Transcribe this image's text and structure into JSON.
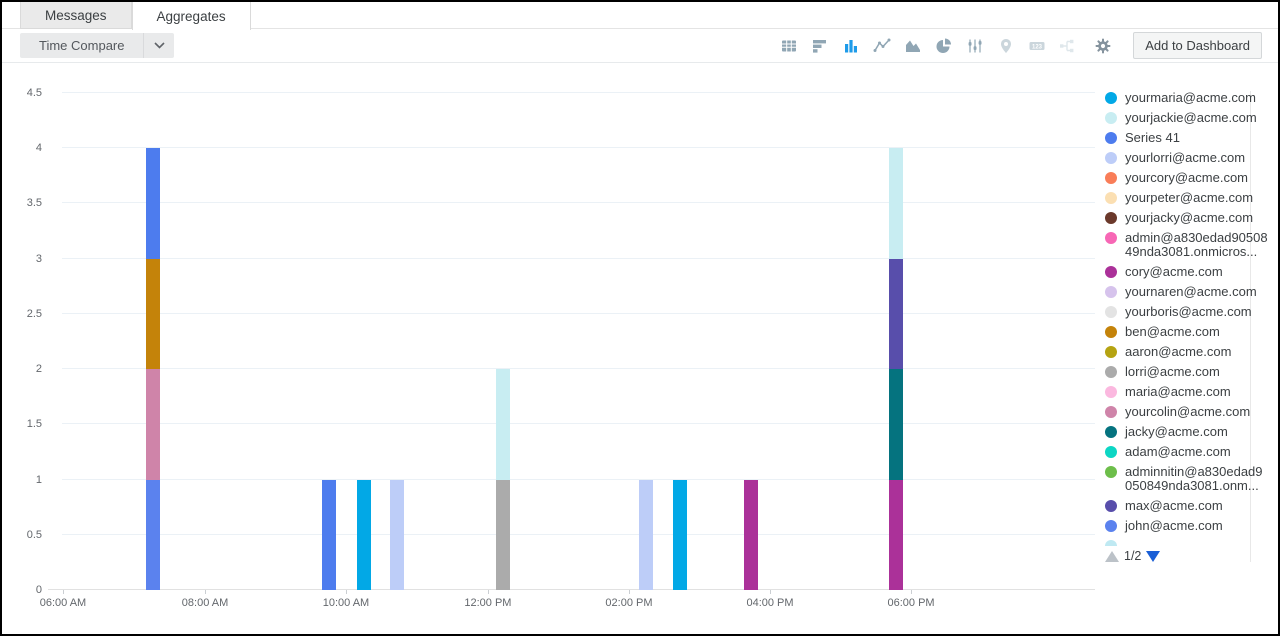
{
  "tabs": {
    "items": [
      {
        "label": "Messages",
        "active": false
      },
      {
        "label": "Aggregates",
        "active": true
      }
    ]
  },
  "toolbar": {
    "time_compare_label": "Time Compare",
    "add_to_dashboard_label": "Add to Dashboard",
    "accent_color": "#1E9BE9",
    "chart_type_icons": [
      {
        "name": "table-icon",
        "state": "normal"
      },
      {
        "name": "horizontal-bar-chart-icon",
        "state": "normal"
      },
      {
        "name": "vertical-bar-chart-icon",
        "state": "active"
      },
      {
        "name": "line-chart-icon",
        "state": "normal"
      },
      {
        "name": "area-chart-icon",
        "state": "normal"
      },
      {
        "name": "pie-chart-icon",
        "state": "normal"
      },
      {
        "name": "sliders-icon",
        "state": "normal"
      },
      {
        "name": "map-pin-icon",
        "state": "disabled"
      },
      {
        "name": "number-123-icon",
        "state": "disabled"
      },
      {
        "name": "flow-icon",
        "state": "disabled"
      },
      {
        "name": "settings-gear-icon",
        "state": "normal"
      }
    ]
  },
  "chart_data": {
    "type": "bar",
    "stacked": true,
    "title": "",
    "xlabel": "",
    "ylabel": "",
    "ylim": [
      0,
      4.5
    ],
    "ytick_labels": [
      "0",
      "0.5",
      "1",
      "1.5",
      "2",
      "2.5",
      "3",
      "3.5",
      "4",
      "4.5"
    ],
    "grid": "horizontal",
    "legend_position": "right",
    "xticks": [
      {
        "label": "06:00 AM",
        "pos": 1.43
      },
      {
        "label": "08:00 AM",
        "pos": 15.0
      },
      {
        "label": "10:00 AM",
        "pos": 28.46
      },
      {
        "label": "12:00 PM",
        "pos": 42.02
      },
      {
        "label": "02:00 PM",
        "pos": 55.49
      },
      {
        "label": "04:00 PM",
        "pos": 68.96
      },
      {
        "label": "06:00 PM",
        "pos": 82.43
      }
    ],
    "bars": [
      {
        "time": "07:15 AM",
        "pos": 9.36,
        "segments": [
          {
            "series": "john@acme.com",
            "value": 1
          },
          {
            "series": "yourcolin@acme.com",
            "value": 1
          },
          {
            "series": "ben@acme.com",
            "value": 1
          },
          {
            "series": "Series 41",
            "value": 1
          }
        ]
      },
      {
        "time": "09:45 AM",
        "pos": 26.17,
        "segments": [
          {
            "series": "Series 41",
            "value": 1
          }
        ]
      },
      {
        "time": "10:15 AM",
        "pos": 29.51,
        "segments": [
          {
            "series": "yourmaria@acme.com",
            "value": 1
          }
        ]
      },
      {
        "time": "10:45 AM",
        "pos": 32.66,
        "segments": [
          {
            "series": "yourlorri@acme.com",
            "value": 1
          }
        ]
      },
      {
        "time": "12:15 PM",
        "pos": 42.79,
        "segments": [
          {
            "series": "lorri@acme.com",
            "value": 1
          },
          {
            "series": "yourjackie@acme.com",
            "value": 1
          }
        ]
      },
      {
        "time": "02:15 PM",
        "pos": 56.45,
        "segments": [
          {
            "series": "yourlorri@acme.com",
            "value": 1
          }
        ]
      },
      {
        "time": "02:45 PM",
        "pos": 59.69,
        "segments": [
          {
            "series": "yourmaria@acme.com",
            "value": 1
          }
        ]
      },
      {
        "time": "03:45 PM",
        "pos": 66.48,
        "segments": [
          {
            "series": "cory@acme.com",
            "value": 1
          }
        ]
      },
      {
        "time": "05:45 PM",
        "pos": 80.32,
        "segments": [
          {
            "series": "cory@acme.com",
            "value": 1
          },
          {
            "series": "jacky@acme.com",
            "value": 1
          },
          {
            "series": "max@acme.com",
            "value": 1
          },
          {
            "series": "yourjackie@acme.com",
            "value": 1
          }
        ]
      }
    ],
    "legend": {
      "page": "1/2",
      "clipped_entry_color": "#BFE9F2",
      "entries": [
        {
          "label": "yourmaria@acme.com",
          "color": "#02A8E6"
        },
        {
          "label": "yourjackie@acme.com",
          "color": "#C8EDF2"
        },
        {
          "label": "Series 41",
          "color": "#4D7CEE"
        },
        {
          "label": "yourlorri@acme.com",
          "color": "#BDCDF8"
        },
        {
          "label": "yourcory@acme.com",
          "color": "#F97D58"
        },
        {
          "label": "yourpeter@acme.com",
          "color": "#FBDFB2"
        },
        {
          "label": "yourjacky@acme.com",
          "color": "#6B392B"
        },
        {
          "label": "admin@a830edad9050849nda3081.onmicros...",
          "color": "#F767B5"
        },
        {
          "label": "cory@acme.com",
          "color": "#AB3199"
        },
        {
          "label": "yournaren@acme.com",
          "color": "#D6C3EC"
        },
        {
          "label": "yourboris@acme.com",
          "color": "#E3E3E3"
        },
        {
          "label": "ben@acme.com",
          "color": "#C4830A"
        },
        {
          "label": "aaron@acme.com",
          "color": "#B5A312"
        },
        {
          "label": "lorri@acme.com",
          "color": "#ABABAB"
        },
        {
          "label": "maria@acme.com",
          "color": "#FBB8DF"
        },
        {
          "label": "yourcolin@acme.com",
          "color": "#CF84A9"
        },
        {
          "label": "jacky@acme.com",
          "color": "#05737F"
        },
        {
          "label": "adam@acme.com",
          "color": "#0DD6C4"
        },
        {
          "label": "adminnitin@a830edad9050849nda3081.onm...",
          "color": "#6DBE4A"
        },
        {
          "label": "max@acme.com",
          "color": "#584EAB"
        },
        {
          "label": "john@acme.com",
          "color": "#5B82EE"
        }
      ]
    }
  }
}
